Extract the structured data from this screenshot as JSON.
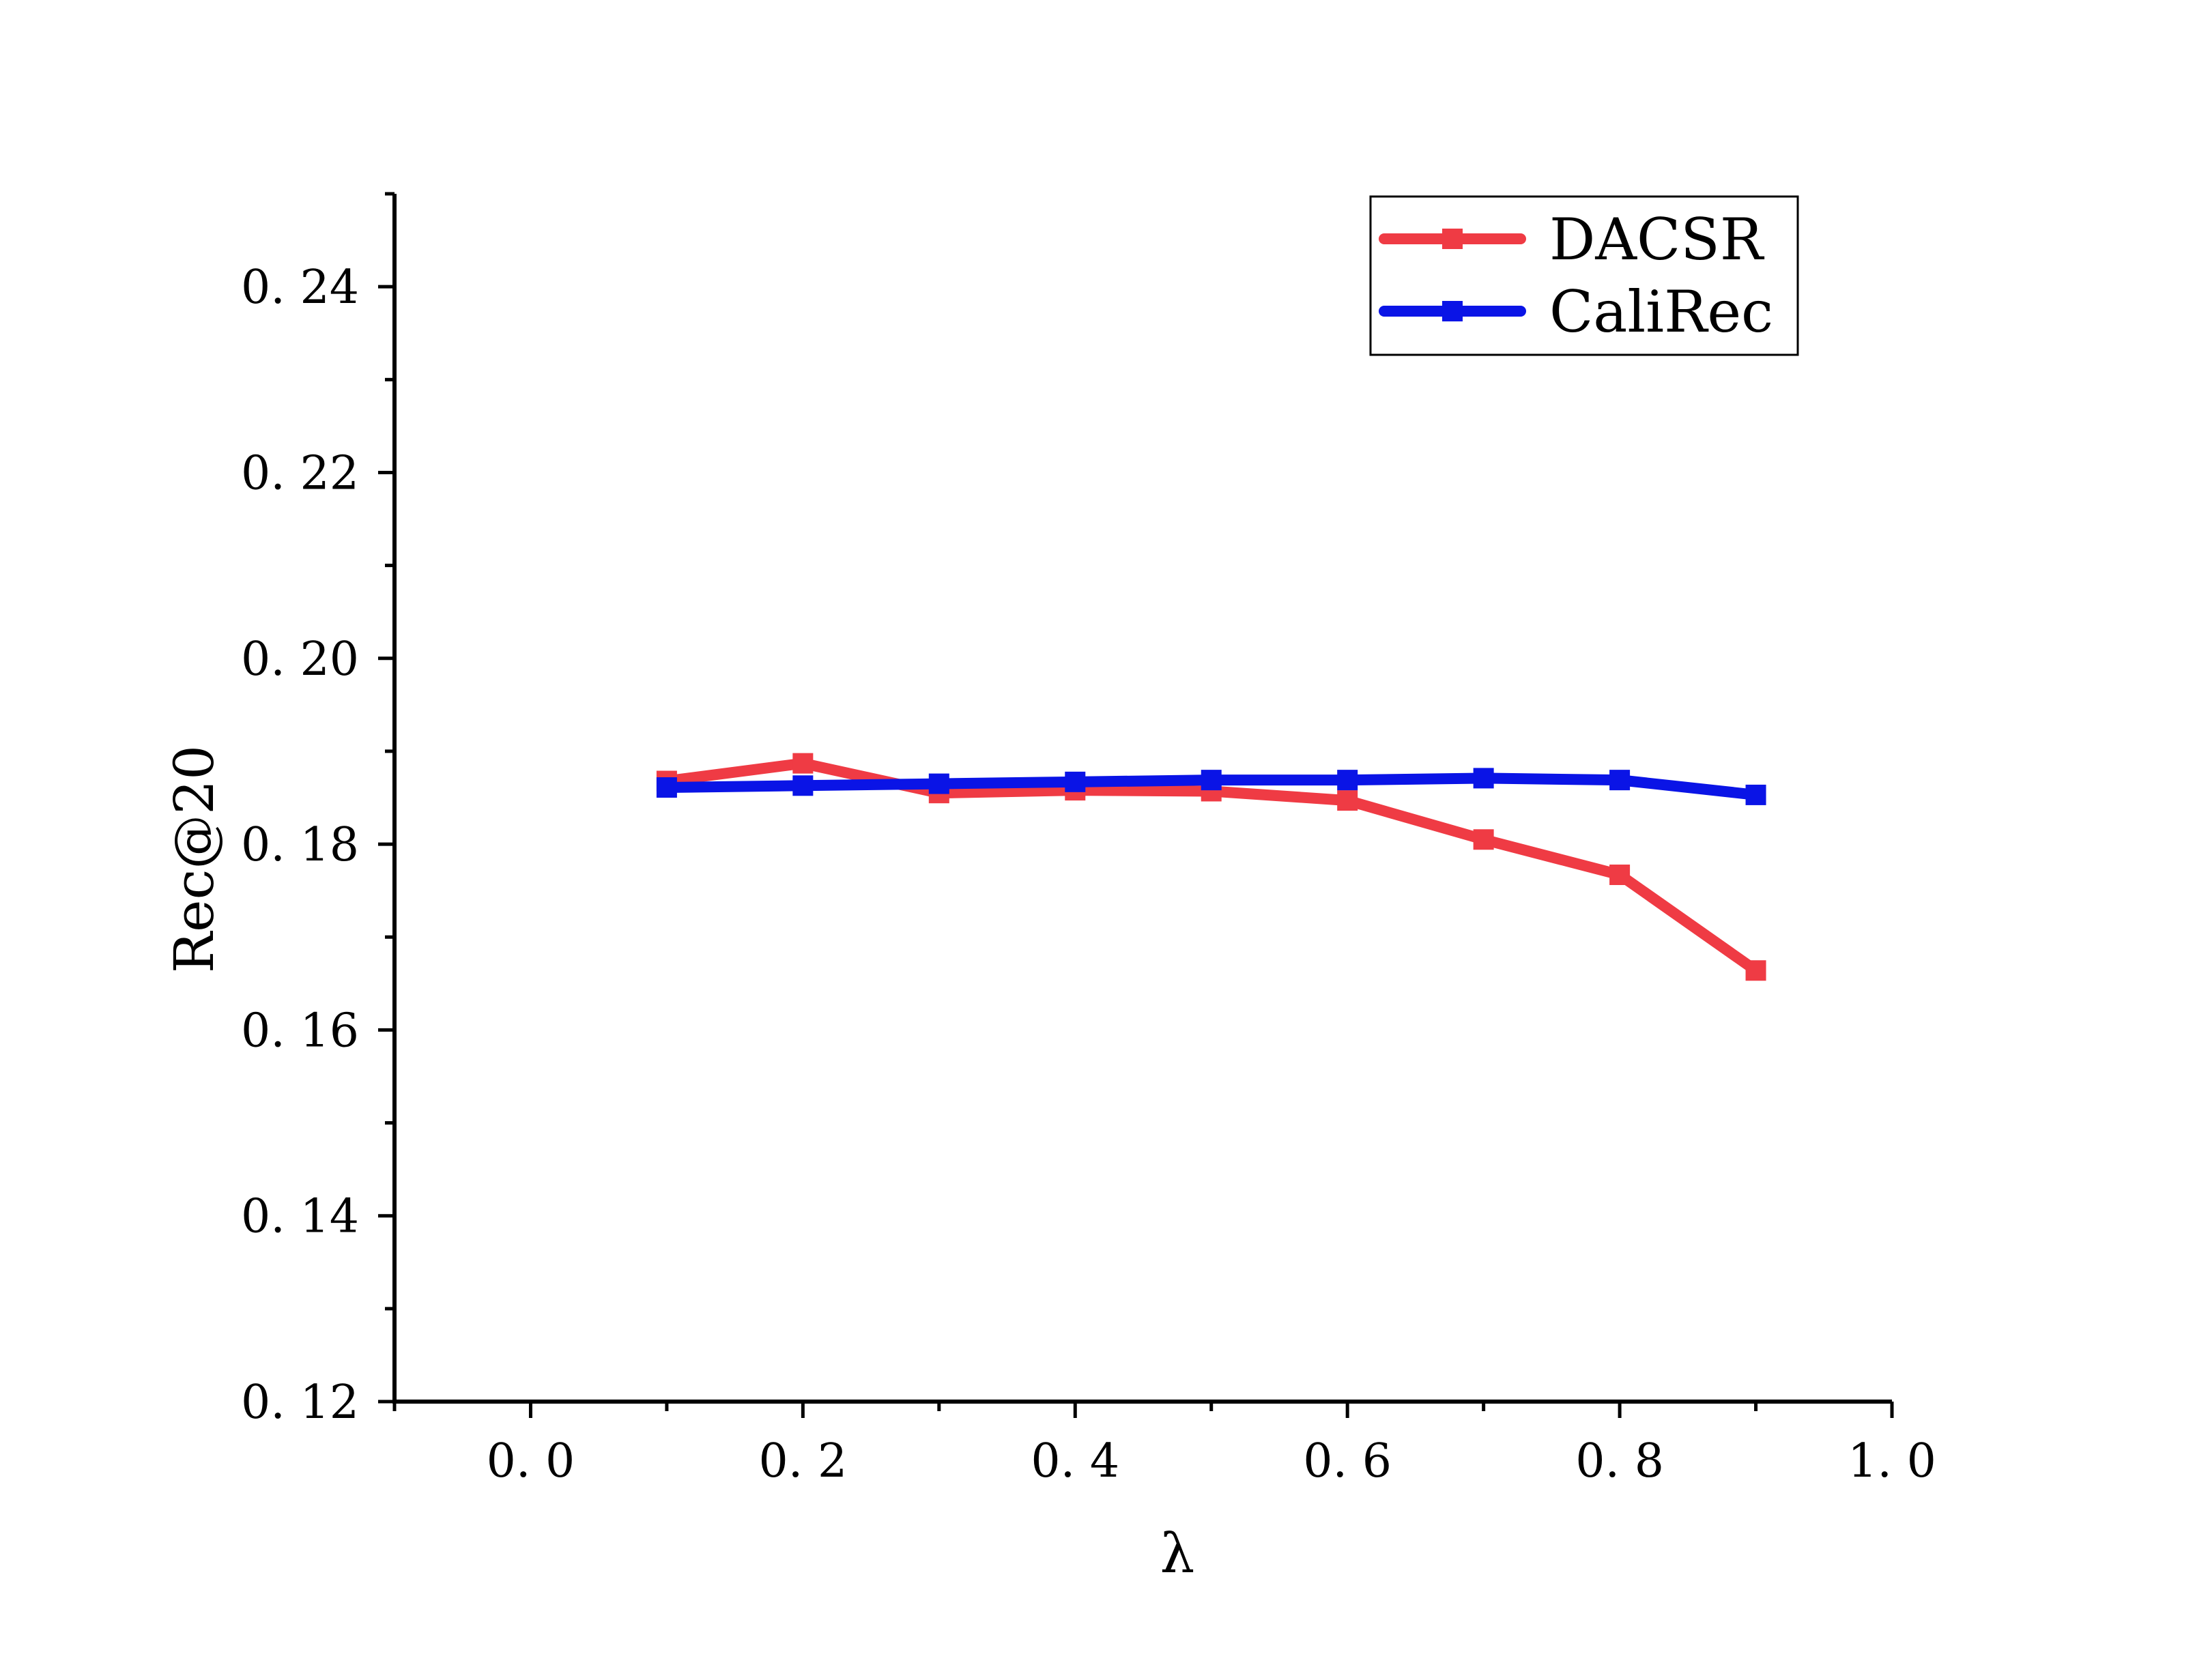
{
  "chart_data": {
    "type": "line",
    "title": "",
    "xlabel": "λ",
    "ylabel": "Rec@20",
    "xlim": [
      -0.1,
      1.0
    ],
    "ylim": [
      0.12,
      0.25
    ],
    "xticks": [
      0.0,
      0.2,
      0.4,
      0.6,
      0.8,
      1.0
    ],
    "xtick_labels": [
      "0. 0",
      "0. 2",
      "0. 4",
      "0. 6",
      "0. 8",
      "1. 0"
    ],
    "yticks": [
      0.12,
      0.14,
      0.16,
      0.18,
      0.2,
      0.22,
      0.24
    ],
    "ytick_labels": [
      "0. 12",
      "0. 14",
      "0. 16",
      "0. 18",
      "0. 20",
      "0. 22",
      "0. 24"
    ],
    "x": [
      0.1,
      0.2,
      0.3,
      0.4,
      0.5,
      0.6,
      0.7,
      0.8,
      0.9
    ],
    "series": [
      {
        "name": "DACSR",
        "color": "#ef3b44",
        "values": [
          0.1868,
          0.1887,
          0.1855,
          0.1858,
          0.1857,
          0.1847,
          0.1805,
          0.1767,
          0.1664
        ]
      },
      {
        "name": "CaliRec",
        "color": "#0a14e6",
        "values": [
          0.1861,
          0.1863,
          0.1865,
          0.1867,
          0.1869,
          0.1869,
          0.1871,
          0.1869,
          0.1853
        ]
      }
    ],
    "legend": "top-right",
    "grid": false
  }
}
